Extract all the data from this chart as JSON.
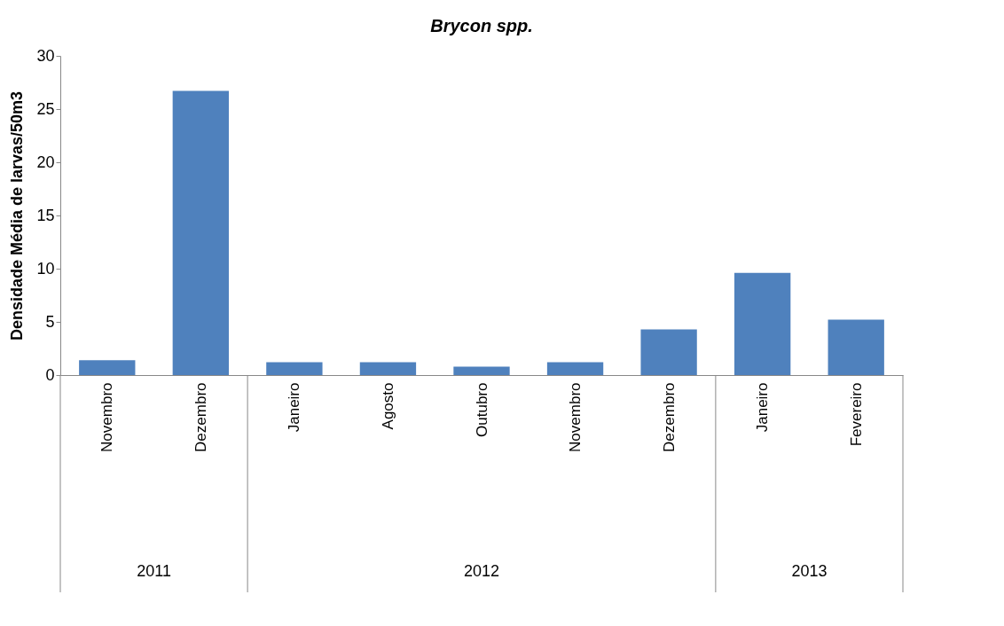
{
  "chart_data": {
    "type": "bar",
    "title": "Brycon spp.",
    "ylabel": "Densidade Média de larvas/50m3",
    "categories": [
      "Novembro",
      "Dezembro",
      "Janeiro",
      "Agosto",
      "Outubro",
      "Novembro",
      "Dezembro",
      "Janeiro",
      "Fevereiro"
    ],
    "values": [
      1.4,
      26.7,
      1.2,
      1.2,
      0.8,
      1.2,
      4.3,
      9.6,
      5.2
    ],
    "color": "#4f81bd",
    "ylim": [
      0,
      30
    ],
    "yticks": [
      0,
      5,
      10,
      15,
      20,
      25,
      30
    ],
    "grid": false,
    "annotations": [
      "2011",
      "2012",
      "2013"
    ]
  }
}
